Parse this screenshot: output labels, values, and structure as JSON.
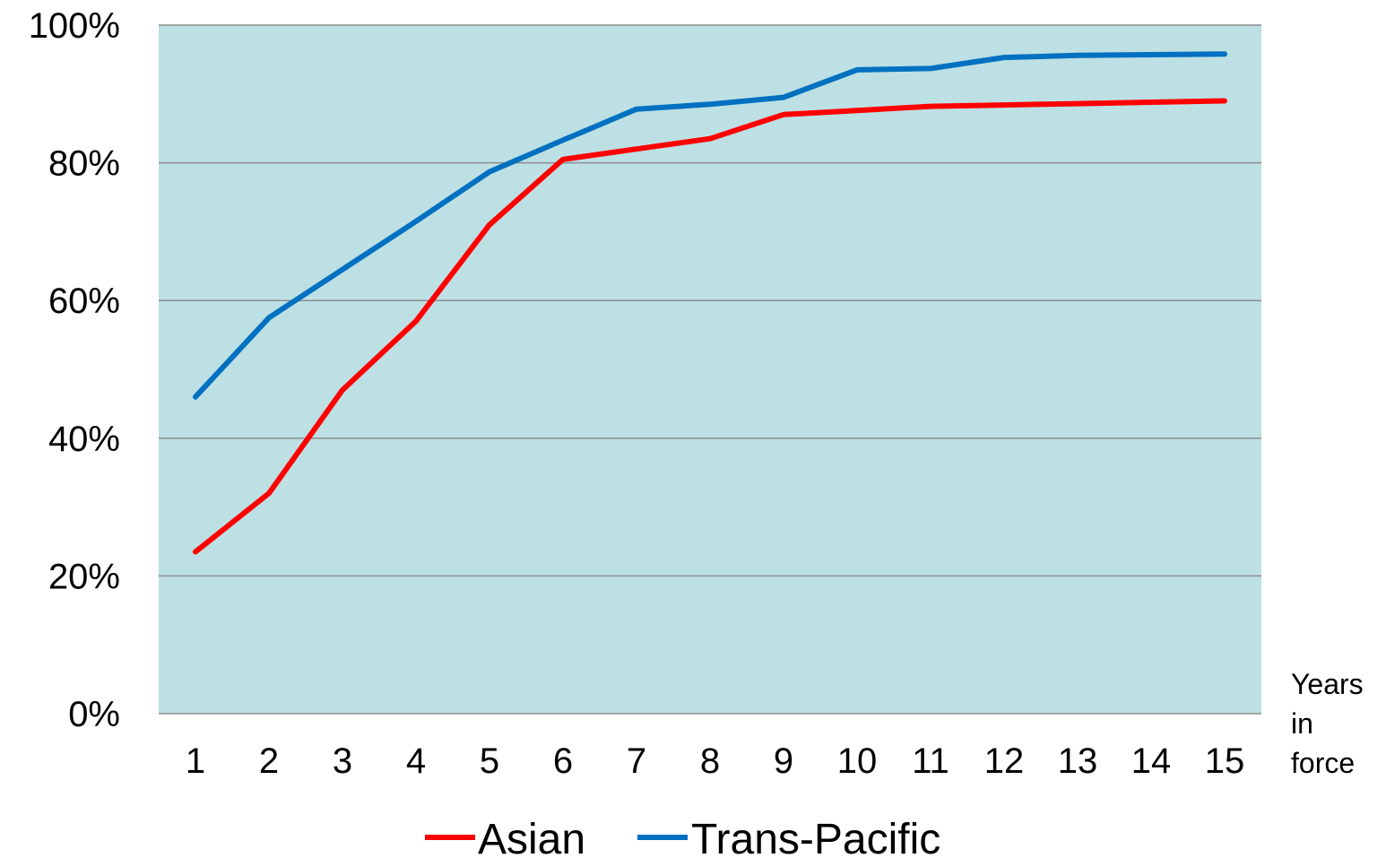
{
  "chart_data": {
    "type": "line",
    "categories": [
      "1",
      "2",
      "3",
      "4",
      "5",
      "6",
      "7",
      "8",
      "9",
      "10",
      "11",
      "12",
      "13",
      "14",
      "15"
    ],
    "series": [
      {
        "name": "Asian",
        "color": "#ff0000",
        "values": [
          0.235,
          0.32,
          0.47,
          0.57,
          0.71,
          0.805,
          0.82,
          0.835,
          0.87,
          0.876,
          0.882,
          0.884,
          0.886,
          0.888,
          0.89
        ]
      },
      {
        "name": "Trans-Pacific",
        "color": "#0070c0",
        "values": [
          0.46,
          0.575,
          0.645,
          0.715,
          0.787,
          0.833,
          0.878,
          0.885,
          0.895,
          0.935,
          0.937,
          0.953,
          0.956,
          0.957,
          0.958
        ]
      }
    ],
    "ylim": [
      0,
      1
    ],
    "yticks": [
      "0%",
      "20%",
      "40%",
      "60%",
      "80%",
      "100%"
    ],
    "xlabel_lines": [
      "Years",
      "in",
      "force"
    ],
    "grid": true,
    "legend_position": "bottom",
    "plot_background": "#bde0e4",
    "grid_color": "#8c8c8c"
  }
}
